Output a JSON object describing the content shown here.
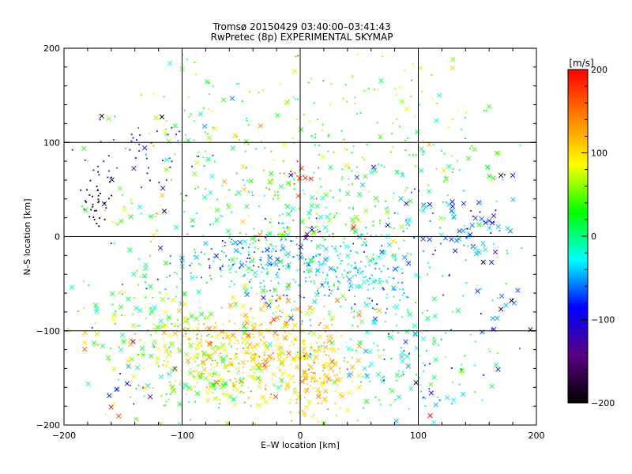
{
  "chart_data": {
    "type": "scatter",
    "title_line1": "Tromsø 20150429 03:40:00–03:41:43",
    "title_line2": "RwPretec (8p) EXPERIMENTAL SKYMAP",
    "xlabel": "E–W location [km]",
    "ylabel": "N–S location [km]",
    "xlim": [
      -200,
      200
    ],
    "ylim": [
      -200,
      200
    ],
    "x_ticks": [
      "-200",
      "-100",
      "0",
      "100",
      "200"
    ],
    "y_ticks": [
      "-200",
      "-100",
      "0",
      "100",
      "200"
    ],
    "grid": true,
    "grid_lines_km": [
      -100,
      0,
      100
    ],
    "colorbar": {
      "label": "[m/s]",
      "range": [
        -200,
        200
      ],
      "tick_labels": [
        "200",
        "100",
        "0",
        "-100",
        "-200"
      ],
      "colors": [
        "#000000",
        "#5a0080",
        "#0000ff",
        "#00ffff",
        "#00ff00",
        "#ffff00",
        "#ff8000",
        "#ff0000"
      ]
    },
    "markers": [
      "dot",
      "cross"
    ],
    "clusters": [
      {
        "x": -170,
        "y": 40,
        "sx": 7,
        "sy": 14,
        "n": 35,
        "v": -200,
        "vs": 8,
        "cross": 0.1
      },
      {
        "x": -140,
        "y": 85,
        "sx": 25,
        "sy": 18,
        "n": 50,
        "v": -110,
        "vs": 35,
        "cross": 0.15
      },
      {
        "x": -80,
        "y": 110,
        "sx": 40,
        "sy": 45,
        "n": 70,
        "v": 30,
        "vs": 35,
        "cross": 0.35
      },
      {
        "x": 30,
        "y": 125,
        "sx": 70,
        "sy": 35,
        "n": 130,
        "v": 55,
        "vs": 35,
        "cross": 0.2
      },
      {
        "x": 120,
        "y": 80,
        "sx": 35,
        "sy": 25,
        "n": 40,
        "v": 20,
        "vs": 30,
        "cross": 0.4
      },
      {
        "x": -150,
        "y": 30,
        "sx": 25,
        "sy": 25,
        "n": 25,
        "v": 40,
        "vs": 40,
        "cross": 0.35
      },
      {
        "x": -30,
        "y": 30,
        "sx": 60,
        "sy": 30,
        "n": 120,
        "v": 20,
        "vs": 50,
        "cross": 0.25
      },
      {
        "x": 50,
        "y": 40,
        "sx": 55,
        "sy": 30,
        "n": 110,
        "v": 10,
        "vs": 50,
        "cross": 0.25
      },
      {
        "x": 0,
        "y": 60,
        "sx": 10,
        "sy": 12,
        "n": 20,
        "v": 165,
        "vs": 25,
        "cross": 0.3
      },
      {
        "x": 140,
        "y": 10,
        "sx": 22,
        "sy": 18,
        "n": 70,
        "v": -65,
        "vs": 35,
        "cross": 0.6
      },
      {
        "x": 165,
        "y": -50,
        "sx": 15,
        "sy": 35,
        "n": 25,
        "v": -60,
        "vs": 60,
        "cross": 0.6
      },
      {
        "x": -50,
        "y": -25,
        "sx": 35,
        "sy": 15,
        "n": 150,
        "v": -40,
        "vs": 40,
        "cross": 0.15
      },
      {
        "x": 30,
        "y": -35,
        "sx": 45,
        "sy": 25,
        "n": 300,
        "v": -30,
        "vs": 30,
        "cross": 0.1
      },
      {
        "x": 10,
        "y": 0,
        "sx": 35,
        "sy": 10,
        "n": 60,
        "v": 60,
        "vs": 100,
        "cross": 0.25
      },
      {
        "x": -130,
        "y": -70,
        "sx": 25,
        "sy": 25,
        "n": 70,
        "v": 20,
        "vs": 40,
        "cross": 0.45
      },
      {
        "x": -170,
        "y": -90,
        "sx": 20,
        "sy": 20,
        "n": 25,
        "v": 50,
        "vs": 60,
        "cross": 0.3
      },
      {
        "x": -25,
        "y": -90,
        "sx": 40,
        "sy": 18,
        "n": 60,
        "v": 125,
        "vs": 30,
        "cross": 0.5
      },
      {
        "x": -80,
        "y": -120,
        "sx": 30,
        "sy": 25,
        "n": 220,
        "v": 85,
        "vs": 30,
        "cross": 0.35
      },
      {
        "x": -25,
        "y": -125,
        "sx": 30,
        "sy": 25,
        "n": 220,
        "v": 105,
        "vs": 30,
        "cross": 0.35
      },
      {
        "x": 15,
        "y": -150,
        "sx": 15,
        "sy": 28,
        "n": 160,
        "v": 105,
        "vs": 20,
        "cross": 0.35
      },
      {
        "x": -80,
        "y": -160,
        "sx": 25,
        "sy": 15,
        "n": 90,
        "v": 40,
        "vs": 30,
        "cross": 0.35
      },
      {
        "x": 100,
        "y": -140,
        "sx": 35,
        "sy": 35,
        "n": 120,
        "v": -20,
        "vs": 35,
        "cross": 0.35
      },
      {
        "x": -140,
        "y": -160,
        "sx": 20,
        "sy": 25,
        "n": 35,
        "v": 50,
        "vs": 100,
        "cross": 0.4
      },
      {
        "x": 60,
        "y": -90,
        "sx": 40,
        "sy": 30,
        "n": 90,
        "v": -20,
        "vs": 40,
        "cross": 0.25
      }
    ],
    "points_explicit": [
      {
        "x": -168,
        "y": 128,
        "v": -200,
        "m": "cross"
      },
      {
        "x": -117,
        "y": 127,
        "v": -200,
        "m": "cross"
      },
      {
        "x": -115,
        "y": 27,
        "v": -200,
        "m": "cross"
      },
      {
        "x": 179,
        "y": -68,
        "v": -200,
        "m": "cross"
      },
      {
        "x": 170,
        "y": -77,
        "v": -170,
        "m": "cross"
      },
      {
        "x": 155,
        "y": -27,
        "v": -200,
        "m": "cross"
      },
      {
        "x": 170,
        "y": 65,
        "v": -200,
        "m": "cross"
      },
      {
        "x": 180,
        "y": 65,
        "v": -100,
        "m": "cross"
      },
      {
        "x": 98,
        "y": -155,
        "v": -200,
        "m": "cross"
      },
      {
        "x": -155,
        "y": -162,
        "v": -110,
        "m": "cross"
      },
      {
        "x": -127,
        "y": -170,
        "v": -140,
        "m": "cross"
      },
      {
        "x": -2,
        "y": 192,
        "v": 170,
        "m": "dot"
      },
      {
        "x": 110,
        "y": -190,
        "v": 200,
        "m": "cross"
      },
      {
        "x": 160,
        "y": 138,
        "v": 40,
        "m": "cross"
      }
    ]
  }
}
